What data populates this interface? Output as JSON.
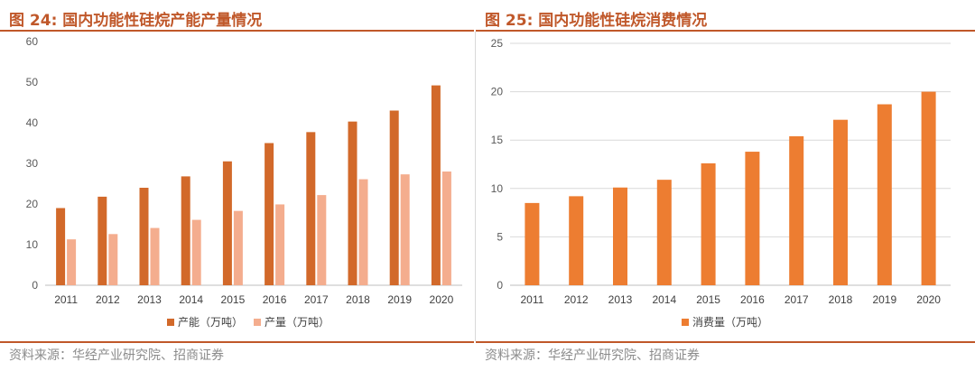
{
  "left": {
    "title": "图 24:  国内功能性硅烷产能产量情况",
    "source": "资料来源：华经产业研究院、招商证券",
    "colors": {
      "series1": "#d2692a",
      "series2": "#f4ad8e",
      "rule": "#c0582a"
    },
    "chart_data": {
      "type": "bar",
      "categories": [
        "2011",
        "2012",
        "2013",
        "2014",
        "2015",
        "2016",
        "2017",
        "2018",
        "2019",
        "2020"
      ],
      "series": [
        {
          "name": "产能（万吨）",
          "values": [
            19,
            21.8,
            24,
            26.8,
            30.5,
            35,
            37.7,
            40.3,
            43,
            49.2
          ]
        },
        {
          "name": "产量（万吨）",
          "values": [
            11.3,
            12.6,
            14.1,
            16.1,
            18.3,
            19.9,
            22.2,
            26.1,
            27.3,
            28
          ]
        }
      ],
      "ylim": [
        0,
        60
      ],
      "yticks": [
        0,
        10,
        20,
        30,
        40,
        50,
        60
      ],
      "grid": false,
      "legend": "bottom"
    }
  },
  "right": {
    "title": "图 25:  国内功能性硅烷消费情况",
    "source": "资料来源：华经产业研究院、招商证券",
    "colors": {
      "series1": "#ed7d31",
      "rule": "#c0582a"
    },
    "chart_data": {
      "type": "bar",
      "categories": [
        "2011",
        "2012",
        "2013",
        "2014",
        "2015",
        "2016",
        "2017",
        "2018",
        "2019",
        "2020"
      ],
      "series": [
        {
          "name": "消费量（万吨）",
          "values": [
            8.5,
            9.2,
            10.1,
            10.9,
            12.6,
            13.8,
            15.4,
            17.1,
            18.7,
            20
          ]
        }
      ],
      "ylim": [
        0,
        25
      ],
      "yticks": [
        0,
        5,
        10,
        15,
        20,
        25
      ],
      "grid": true,
      "legend": "bottom"
    }
  }
}
